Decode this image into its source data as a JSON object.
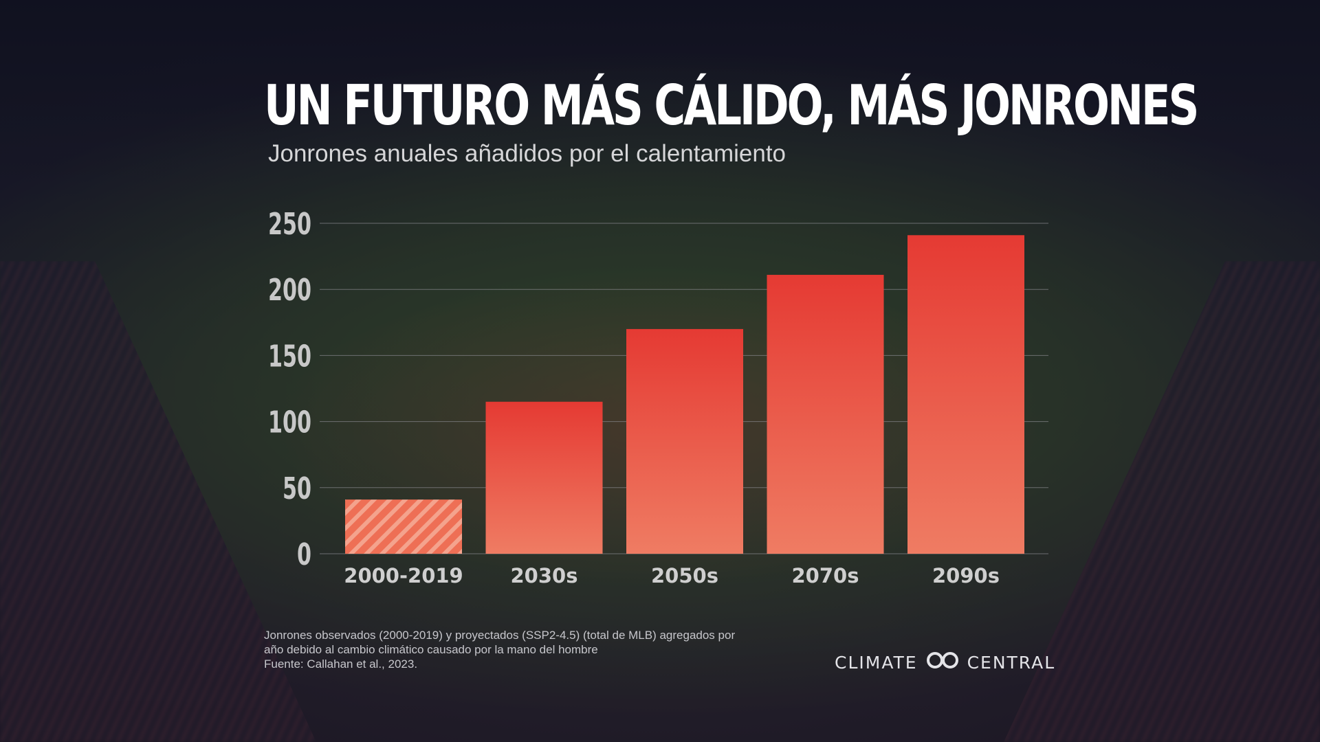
{
  "header": {
    "title": "UN FUTURO MÁS CÁLIDO, MÁS JONRONES",
    "subtitle": "Jonrones anuales añadidos por el calentamiento"
  },
  "chart_data": {
    "type": "bar",
    "title": "UN FUTURO MÁS CÁLIDO, MÁS JONRONES",
    "subtitle": "Jonrones anuales añadidos por el calentamiento",
    "categories": [
      "2000-2019",
      "2030s",
      "2050s",
      "2070s",
      "2090s"
    ],
    "values": [
      41,
      115,
      170,
      211,
      241
    ],
    "observed_categories": [
      "2000-2019"
    ],
    "ylim": [
      0,
      250
    ],
    "yticks": [
      0,
      50,
      100,
      150,
      200,
      250
    ],
    "xlabel": "",
    "ylabel": "",
    "grid": true,
    "colors": {
      "bar_top": "#e53a33",
      "bar_bottom": "#ef7c63",
      "observed_bar": "#ee6f55",
      "observed_hatch": "#f4a38d",
      "grid": "#8a8a90"
    }
  },
  "footnote": {
    "line1": "Jonrones observados (2000-2019) y proyectados (SSP2-4.5) (total de MLB) agregados por",
    "line2": "año debido al cambio climático causado por la mano del hombre",
    "line3": "Fuente: Callahan et al., 2023."
  },
  "logo": {
    "left_text": "CLIMATE",
    "right_text": "CENTRAL",
    "icon": "infinity-icon"
  }
}
